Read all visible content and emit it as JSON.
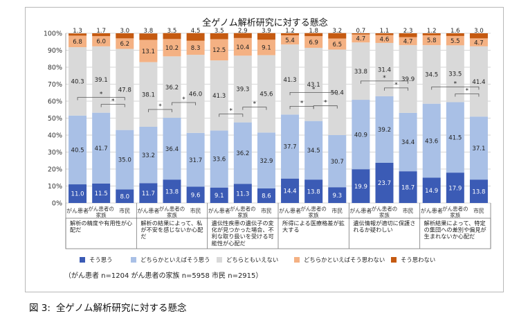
{
  "caption": {
    "figure_number": "図 3:",
    "text": "全ゲノム解析研究に対する懸念"
  },
  "chart_data": {
    "type": "bar",
    "stacked": true,
    "percent": true,
    "title": "全ゲノム解析研究に対する懸念",
    "ylim": [
      0,
      100
    ],
    "yticks": [
      "0%",
      "10%",
      "20%",
      "30%",
      "40%",
      "50%",
      "60%",
      "70%",
      "80%",
      "90%",
      "100%"
    ],
    "grid": true,
    "legend_position": "bottom",
    "note": "（がん患者 n=1204 がん患者の家族 n=5958 市民 n=2915）",
    "series": [
      {
        "name": "そう思う",
        "color": "#3b5bb5"
      },
      {
        "name": "どちらかといえばそう思う",
        "color": "#a9c0e6"
      },
      {
        "name": "どちらともいえない",
        "color": "#d9d9d9"
      },
      {
        "name": "どちらかといえばそう思わない",
        "color": "#f4b183"
      },
      {
        "name": "そう思わない",
        "color": "#c55a11"
      }
    ],
    "groups": [
      {
        "label": "解析の精度や有用性が心配だ",
        "bars": [
          {
            "category": "がん患者",
            "values": [
              11.0,
              40.5,
              40.3,
              6.8,
              1.3
            ]
          },
          {
            "category": "がん患者の家族",
            "values": [
              11.5,
              41.7,
              39.1,
              6.0,
              1.7
            ]
          },
          {
            "category": "市民",
            "values": [
              8.0,
              35.0,
              47.8,
              6.2,
              3.0
            ]
          }
        ],
        "significance": [
          [
            0,
            2
          ],
          [
            1,
            2
          ]
        ]
      },
      {
        "label": "解析の結果によって、私が不安を感じないか心配だ",
        "bars": [
          {
            "category": "がん患者",
            "values": [
              11.7,
              33.2,
              38.1,
              13.1,
              3.8
            ]
          },
          {
            "category": "がん患者の家族",
            "values": [
              13.8,
              36.4,
              36.2,
              10.2,
              3.5
            ]
          },
          {
            "category": "市民",
            "values": [
              9.6,
              31.7,
              46.0,
              8.3,
              4.5
            ]
          }
        ],
        "significance": [
          [
            0,
            1
          ],
          [
            1,
            2
          ]
        ]
      },
      {
        "label": "遺伝性疾患の遺伝子の変化が見つかった場合、不利な取り扱いを受ける可能性が心配だ",
        "bars": [
          {
            "category": "がん患者",
            "values": [
              9.1,
              33.6,
              41.3,
              12.5,
              3.5
            ]
          },
          {
            "category": "がん患者の家族",
            "values": [
              11.3,
              36.2,
              39.3,
              10.4,
              2.9
            ]
          },
          {
            "category": "市民",
            "values": [
              8.6,
              32.9,
              45.6,
              9.1,
              3.9
            ]
          }
        ],
        "significance": [
          [
            0,
            1
          ],
          [
            1,
            2
          ]
        ]
      },
      {
        "label": "所得による医療格差が拡大する",
        "bars": [
          {
            "category": "がん患者",
            "values": [
              14.4,
              37.7,
              41.3,
              5.4,
              1.2
            ]
          },
          {
            "category": "がん患者の家族",
            "values": [
              13.8,
              34.5,
              43.1,
              6.9,
              1.8
            ]
          },
          {
            "category": "市民",
            "values": [
              9.3,
              30.7,
              50.4,
              6.5,
              3.2
            ]
          }
        ],
        "significance": [
          [
            0,
            1
          ],
          [
            0,
            2
          ],
          [
            1,
            2
          ]
        ]
      },
      {
        "label": "遺伝情報が適切に保護されるか疑わしい",
        "bars": [
          {
            "category": "がん患者",
            "values": [
              19.9,
              40.9,
              33.8,
              4.7,
              0.7
            ]
          },
          {
            "category": "がん患者の家族",
            "values": [
              23.7,
              39.2,
              31.4,
              4.6,
              1.1
            ]
          },
          {
            "category": "市民",
            "values": [
              18.7,
              34.4,
              39.9,
              4.7,
              2.3
            ]
          }
        ],
        "significance": [
          [
            0,
            2
          ],
          [
            1,
            2
          ]
        ]
      },
      {
        "label": "解析結果によって、特定の集団への差別や偏見が生まれないか心配だ",
        "bars": [
          {
            "category": "がん患者",
            "values": [
              14.9,
              43.6,
              34.5,
              5.8,
              1.2
            ]
          },
          {
            "category": "がん患者の家族",
            "values": [
              17.9,
              41.5,
              33.5,
              5.5,
              1.6
            ]
          },
          {
            "category": "市民",
            "values": [
              13.8,
              37.1,
              41.4,
              4.7,
              3.0
            ]
          }
        ],
        "significance": [
          [
            0,
            2
          ],
          [
            1,
            2
          ]
        ]
      }
    ],
    "significance_marker": "*"
  }
}
